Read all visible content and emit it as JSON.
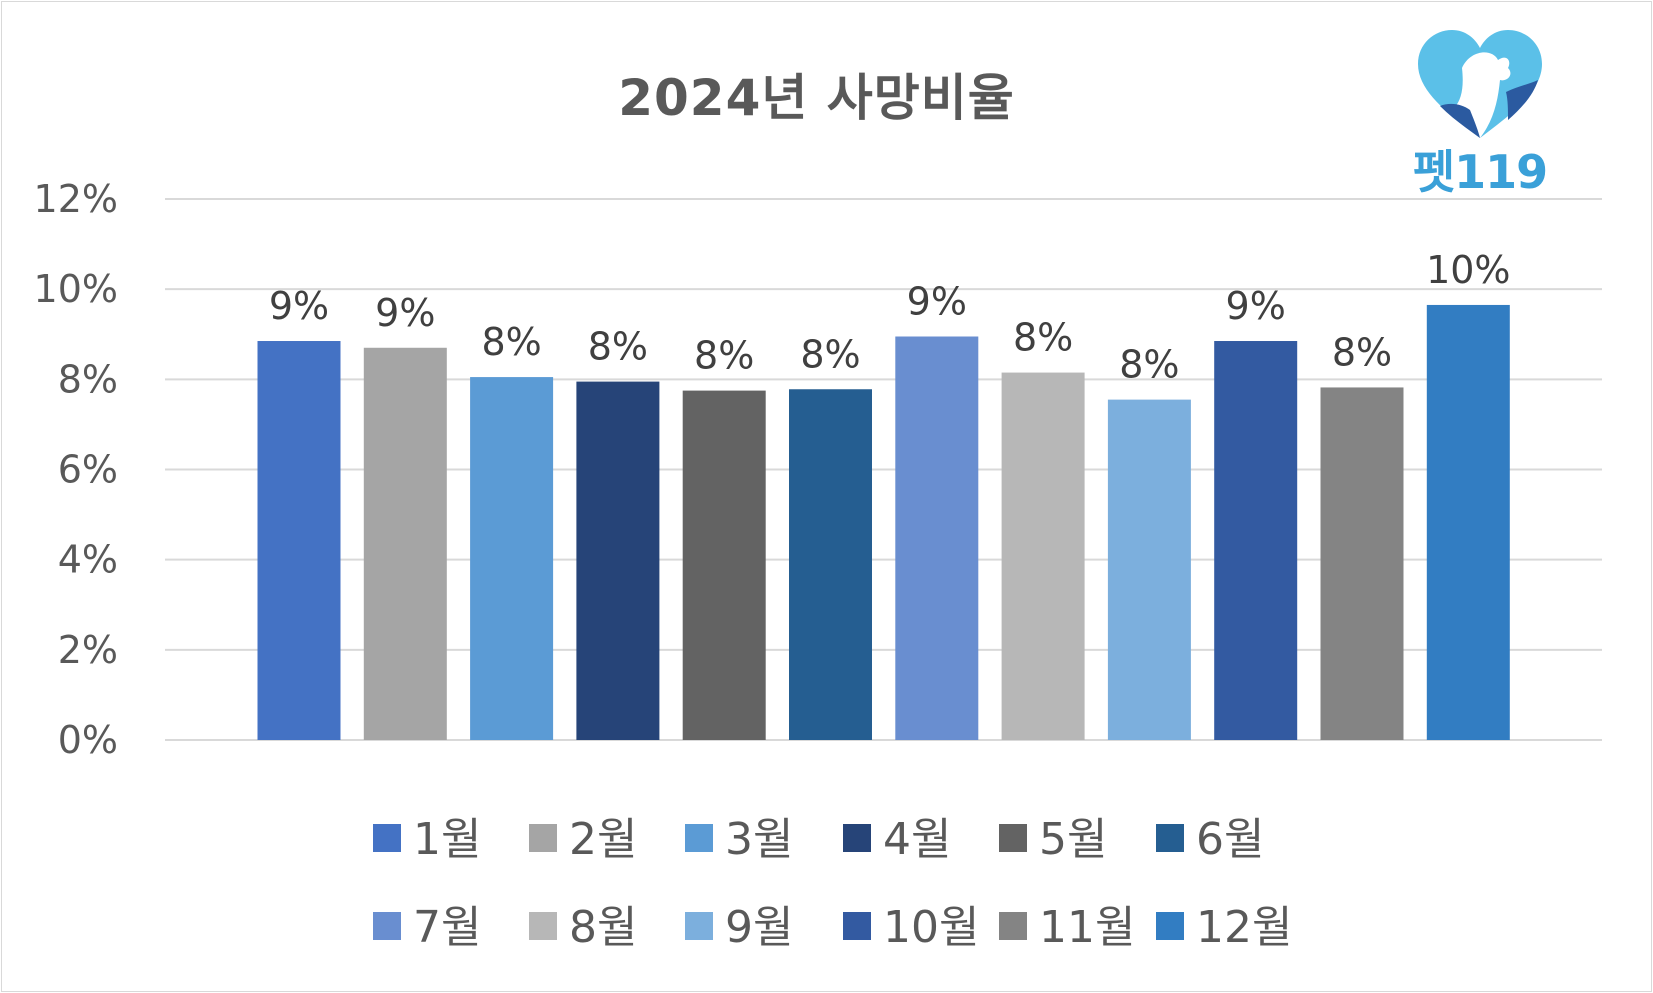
{
  "chart_data": {
    "type": "bar",
    "title": "2024년  사망비율",
    "categories": [
      "1월",
      "2월",
      "3월",
      "4월",
      "5월",
      "6월",
      "7월",
      "8월",
      "9월",
      "10월",
      "11월",
      "12월"
    ],
    "values": [
      8.85,
      8.7,
      8.05,
      7.95,
      7.75,
      7.78,
      8.95,
      8.15,
      7.55,
      8.85,
      7.82,
      9.65
    ],
    "data_labels": [
      "9%",
      "9%",
      "8%",
      "8%",
      "8%",
      "8%",
      "9%",
      "8%",
      "8%",
      "9%",
      "8%",
      "10%"
    ],
    "colors": [
      "#4472c4",
      "#a5a5a5",
      "#5b9bd5",
      "#264478",
      "#636363",
      "#255e91",
      "#698ed0",
      "#b7b7b7",
      "#7cafdd",
      "#335aa1",
      "#848484",
      "#327dc2"
    ],
    "ylim": [
      0,
      12
    ],
    "y_ticks": [
      "0%",
      "2%",
      "4%",
      "6%",
      "8%",
      "10%",
      "12%"
    ],
    "xlabel": "",
    "ylabel": "",
    "grid": true,
    "legend_position": "bottom"
  },
  "logo": {
    "text": "펫119",
    "colors": [
      "#5bc0e8",
      "#3a8fd0",
      "#2b5aa0"
    ]
  }
}
